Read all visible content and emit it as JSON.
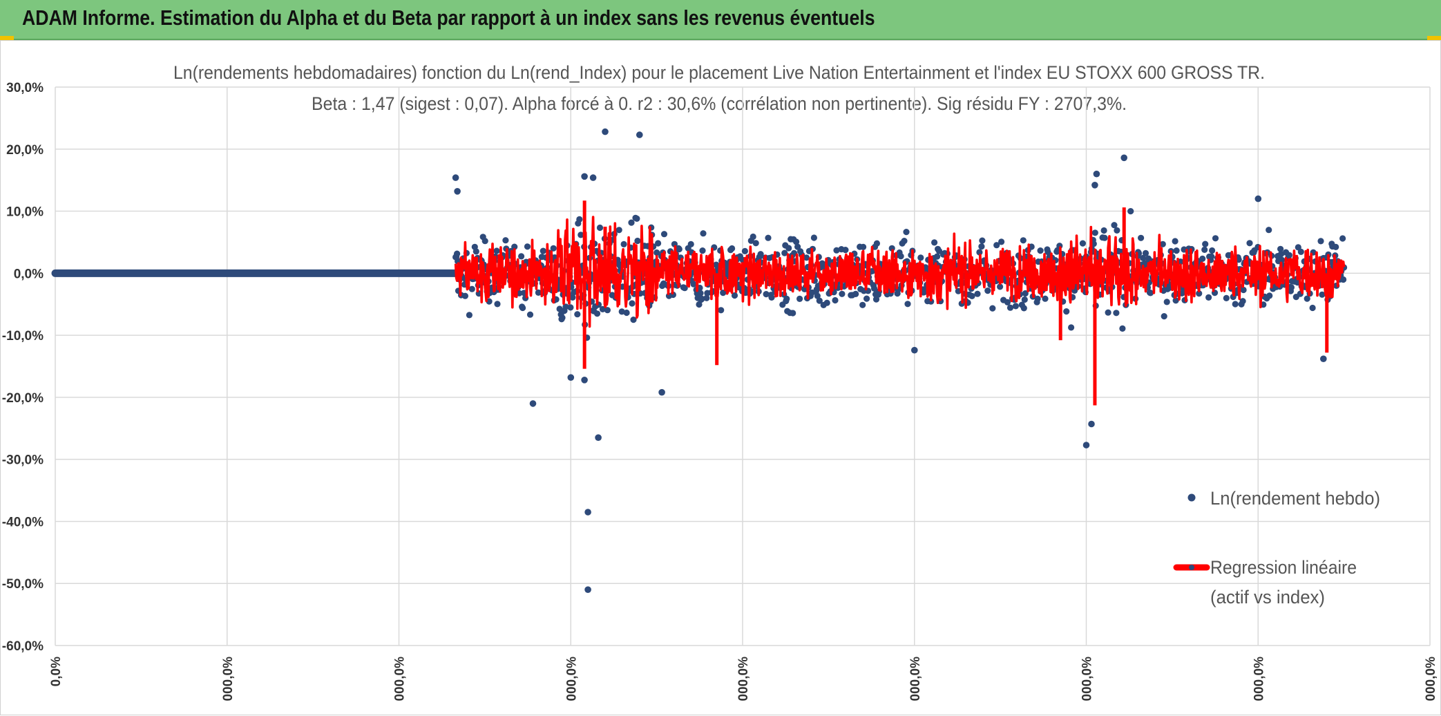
{
  "header": {
    "title": "ADAM Informe. Estimation du Alpha et du Beta par rapport à un index sans les revenus éventuels",
    "bg_color": "#7dc67e"
  },
  "chart_data": {
    "type": "scatter",
    "title_line1": "Ln(rendements hebdomadaires) fonction du Ln(rend_Index) pour le placement Live Nation Entertainment et l'index EU STOXX 600 GROSS TR.",
    "title_line2": "Beta : 1,47 (sigest : 0,07). Alpha forcé à 0. r2 : 30,6% (corrélation non pertinente). Sig résidu FY : 2707,3%.",
    "ylim": [
      -60,
      30
    ],
    "y_ticks": [
      "30,0%",
      "20,0%",
      "10,0%",
      "0,0%",
      "-10,0%",
      "-20,0%",
      "-30,0%",
      "-40,0%",
      "-50,0%",
      "-60,0%"
    ],
    "x_ticks": [
      "0,0%",
      "000,0%",
      "000,0%",
      "000,0%",
      "000,0%",
      "000,0%",
      "000,0%",
      "000,0%",
      "000,0%"
    ],
    "grid": true,
    "legend_position": "right",
    "series": [
      {
        "name": "Ln(rendement hebdo)",
        "kind": "scatter",
        "color": "#2e4a7a",
        "notable_points": [
          [
            2.33,
            15.4
          ],
          [
            2.34,
            13.2
          ],
          [
            2.78,
            -21.0
          ],
          [
            3.0,
            -16.8
          ],
          [
            3.08,
            -17.2
          ],
          [
            3.08,
            15.6
          ],
          [
            3.1,
            -38.5
          ],
          [
            3.1,
            -51.0
          ],
          [
            3.13,
            15.4
          ],
          [
            3.16,
            -26.5
          ],
          [
            3.2,
            22.8
          ],
          [
            3.4,
            22.3
          ],
          [
            3.53,
            -19.2
          ],
          [
            5.0,
            -12.4
          ],
          [
            6.0,
            -27.7
          ],
          [
            6.03,
            -24.3
          ],
          [
            6.06,
            16.0
          ],
          [
            6.05,
            14.2
          ],
          [
            6.22,
            18.6
          ],
          [
            7.0,
            12.0
          ],
          [
            7.38,
            -13.8
          ]
        ]
      },
      {
        "name": "Regression linéaire",
        "name_line2": "(actif vs index)",
        "kind": "line",
        "color": "#ff0000",
        "notable_points": [
          [
            3.08,
            11.7
          ],
          [
            3.08,
            -15.4
          ],
          [
            3.2,
            7.5
          ],
          [
            3.85,
            -14.8
          ],
          [
            5.85,
            -10.8
          ],
          [
            6.05,
            -21.3
          ],
          [
            6.22,
            10.6
          ],
          [
            7.4,
            -12.8
          ]
        ]
      }
    ]
  }
}
